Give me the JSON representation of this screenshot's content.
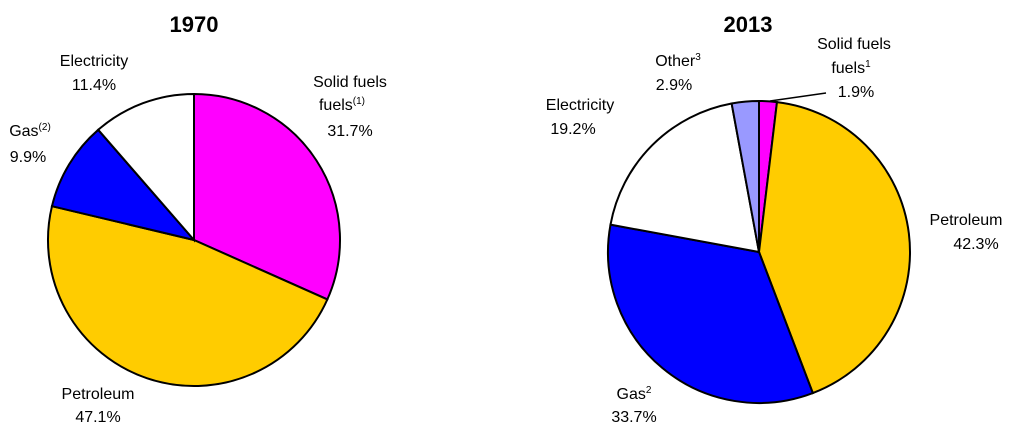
{
  "chart_data": [
    {
      "type": "pie",
      "title": "1970",
      "start_angle_deg": 0,
      "direction": "clockwise",
      "slices": [
        {
          "name": "Solid fuels",
          "note": "(1)",
          "value": 31.7,
          "label": "31.7%",
          "color": "#FF00FF"
        },
        {
          "name": "Petroleum",
          "note": "",
          "value": 47.1,
          "label": "47.1%",
          "color": "#FFCC00"
        },
        {
          "name": "Gas",
          "note": "(2)",
          "value": 9.9,
          "label": "9.9%",
          "color": "#0000FF"
        },
        {
          "name": "Electricity",
          "note": "",
          "value": 11.4,
          "label": "11.4%",
          "color": "#FFFFFF"
        }
      ]
    },
    {
      "type": "pie",
      "title": "2013",
      "start_angle_deg": 0,
      "direction": "clockwise",
      "slices": [
        {
          "name": "Solid fuels",
          "note": "1",
          "value": 1.9,
          "label": "1.9%",
          "color": "#FF00FF"
        },
        {
          "name": "Petroleum",
          "note": "",
          "value": 42.3,
          "label": "42.3%",
          "color": "#FFCC00"
        },
        {
          "name": "Gas",
          "note": "2",
          "value": 33.7,
          "label": "33.7%",
          "color": "#0000FF"
        },
        {
          "name": "Electricity",
          "note": "",
          "value": 19.2,
          "label": "19.2%",
          "color": "#FFFFFF"
        },
        {
          "name": "Other",
          "note": "3",
          "value": 2.9,
          "label": "2.9%",
          "color": "#9999FF"
        }
      ]
    }
  ]
}
